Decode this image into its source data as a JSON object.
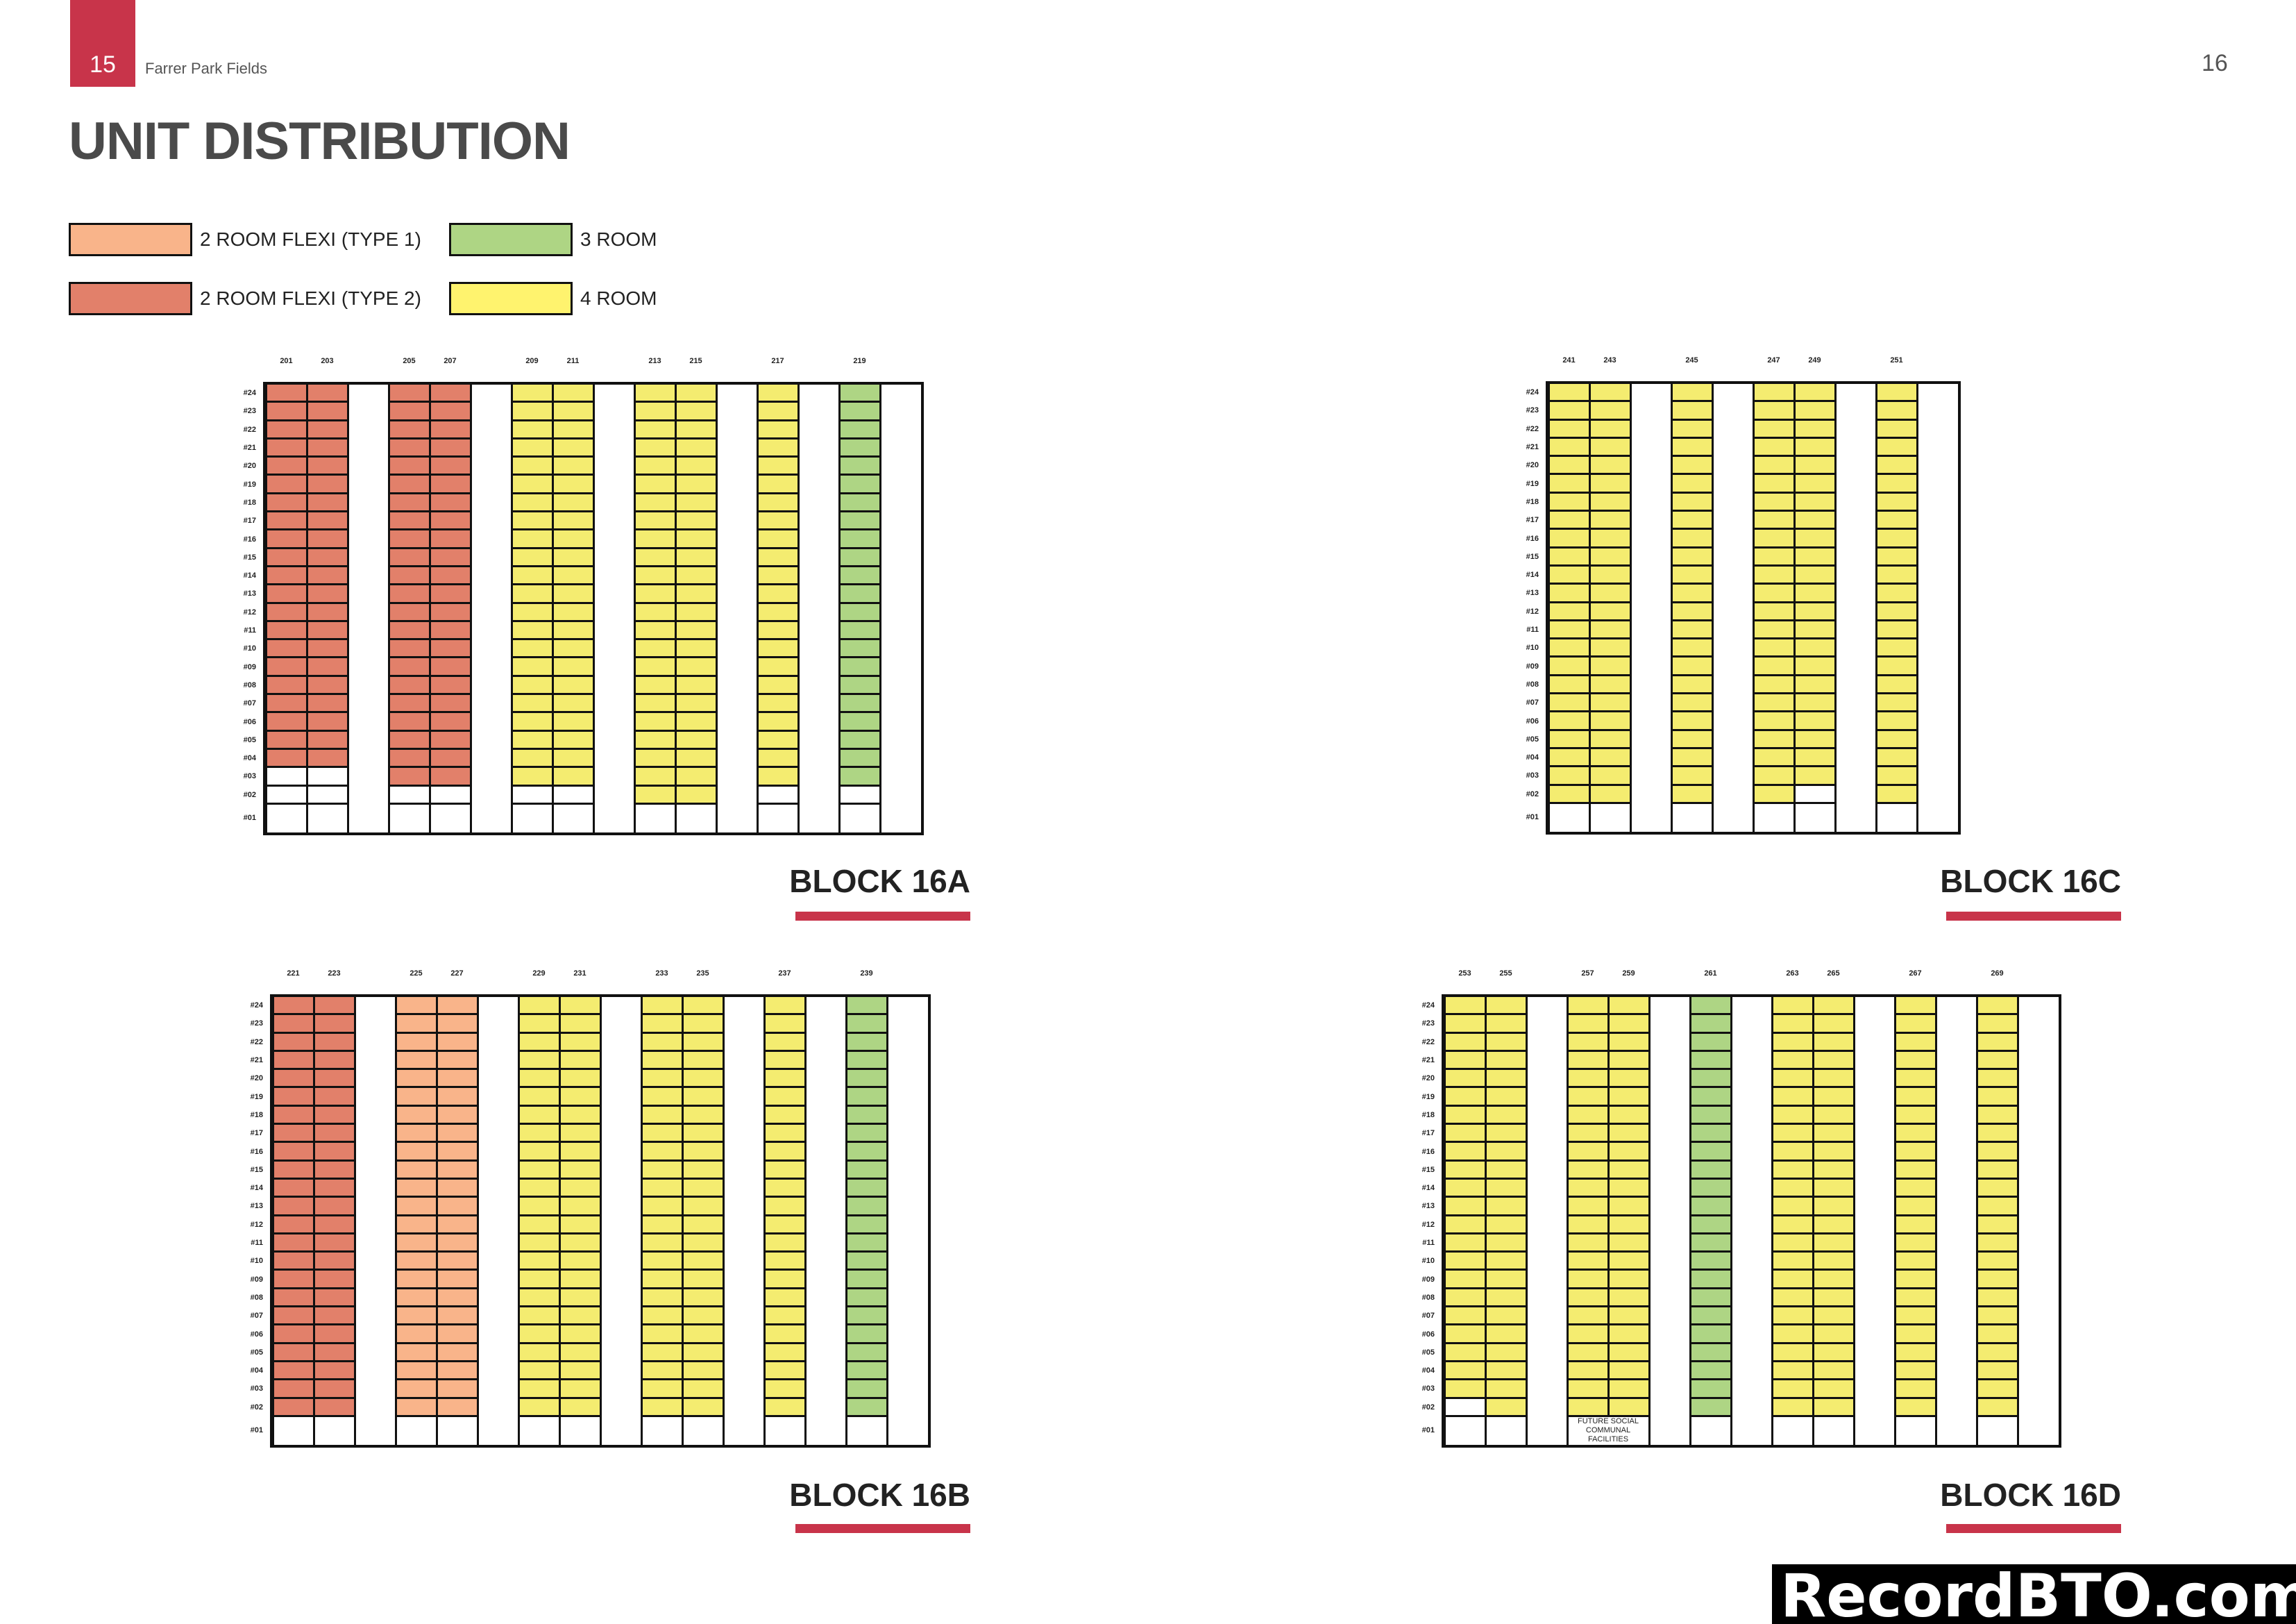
{
  "header": {
    "page_left": "15",
    "doc_title": "Farrer Park Fields",
    "page_right": "16"
  },
  "title": "UNIT DISTRIBUTION",
  "legend": [
    {
      "key": "t1",
      "label": "2 ROOM FLEXI (TYPE 1)",
      "color": "#F9B48A"
    },
    {
      "key": "t2",
      "label": "2 ROOM FLEXI (TYPE 2)",
      "color": "#E2806A"
    },
    {
      "key": "r3",
      "label": "3 ROOM",
      "color": "#AED584"
    },
    {
      "key": "r4",
      "label": "4 ROOM",
      "color": "#FFF36E"
    }
  ],
  "cell_colors": {
    "t1": "#F9B48A",
    "t2": "#E2806A",
    "r3": "#AED584",
    "r4": "#F4EC70"
  },
  "floors": [
    "#24",
    "#23",
    "#22",
    "#21",
    "#20",
    "#19",
    "#18",
    "#17",
    "#16",
    "#15",
    "#14",
    "#13",
    "#12",
    "#11",
    "#10",
    "#09",
    "#08",
    "#07",
    "#06",
    "#05",
    "#04",
    "#03",
    "#02",
    "#01"
  ],
  "blocks": [
    {
      "name": "BLOCK 16A",
      "columns": [
        {
          "unit": "201",
          "type": "t2",
          "lowest_floor": 4
        },
        {
          "unit": "203",
          "type": "t2",
          "lowest_floor": 4
        },
        null,
        {
          "unit": "205",
          "type": "t2",
          "lowest_floor": 3
        },
        {
          "unit": "207",
          "type": "t2",
          "lowest_floor": 3
        },
        null,
        {
          "unit": "209",
          "type": "r4",
          "lowest_floor": 3
        },
        {
          "unit": "211",
          "type": "r4",
          "lowest_floor": 3
        },
        null,
        {
          "unit": "213",
          "type": "r4",
          "lowest_floor": 2
        },
        {
          "unit": "215",
          "type": "r4",
          "lowest_floor": 2
        },
        null,
        {
          "unit": "217",
          "type": "r4",
          "lowest_floor": 3
        },
        null,
        {
          "unit": "219",
          "type": "r3",
          "lowest_floor": 3
        },
        null
      ]
    },
    {
      "name": "BLOCK 16C",
      "columns": [
        {
          "unit": "241",
          "type": "r4",
          "lowest_floor": 2
        },
        {
          "unit": "243",
          "type": "r4",
          "lowest_floor": 2
        },
        null,
        {
          "unit": "245",
          "type": "r4",
          "lowest_floor": 2
        },
        null,
        {
          "unit": "247",
          "type": "r4",
          "lowest_floor": 2
        },
        {
          "unit": "249",
          "type": "r4",
          "lowest_floor": 3
        },
        null,
        {
          "unit": "251",
          "type": "r4",
          "lowest_floor": 2
        },
        null
      ]
    },
    {
      "name": "BLOCK 16B",
      "columns": [
        {
          "unit": "221",
          "type": "t2",
          "lowest_floor": 2
        },
        {
          "unit": "223",
          "type": "t2",
          "lowest_floor": 2
        },
        null,
        {
          "unit": "225",
          "type": "t1",
          "lowest_floor": 2
        },
        {
          "unit": "227",
          "type": "t1",
          "lowest_floor": 2
        },
        null,
        {
          "unit": "229",
          "type": "r4",
          "lowest_floor": 2
        },
        {
          "unit": "231",
          "type": "r4",
          "lowest_floor": 2
        },
        null,
        {
          "unit": "233",
          "type": "r4",
          "lowest_floor": 2
        },
        {
          "unit": "235",
          "type": "r4",
          "lowest_floor": 2
        },
        null,
        {
          "unit": "237",
          "type": "r4",
          "lowest_floor": 2
        },
        null,
        {
          "unit": "239",
          "type": "r3",
          "lowest_floor": 2
        },
        null
      ]
    },
    {
      "name": "BLOCK 16D",
      "columns": [
        {
          "unit": "253",
          "type": "r4",
          "lowest_floor": 3
        },
        {
          "unit": "255",
          "type": "r4",
          "lowest_floor": 2
        },
        null,
        {
          "unit": "257",
          "type": "r4",
          "lowest_floor": 2
        },
        {
          "unit": "259",
          "type": "r4",
          "lowest_floor": 2
        },
        null,
        {
          "unit": "261",
          "type": "r3",
          "lowest_floor": 2
        },
        null,
        {
          "unit": "263",
          "type": "r4",
          "lowest_floor": 2
        },
        {
          "unit": "265",
          "type": "r4",
          "lowest_floor": 2
        },
        null,
        {
          "unit": "267",
          "type": "r4",
          "lowest_floor": 2
        },
        null,
        {
          "unit": "269",
          "type": "r4",
          "lowest_floor": 2
        },
        null
      ],
      "ground_note": {
        "text_line1": "FUTURE SOCIAL",
        "text_line2": "COMMUNAL FACILITIES",
        "from_unit": "257",
        "to_unit": "259"
      }
    }
  ],
  "watermark": "RecordBTO.com"
}
